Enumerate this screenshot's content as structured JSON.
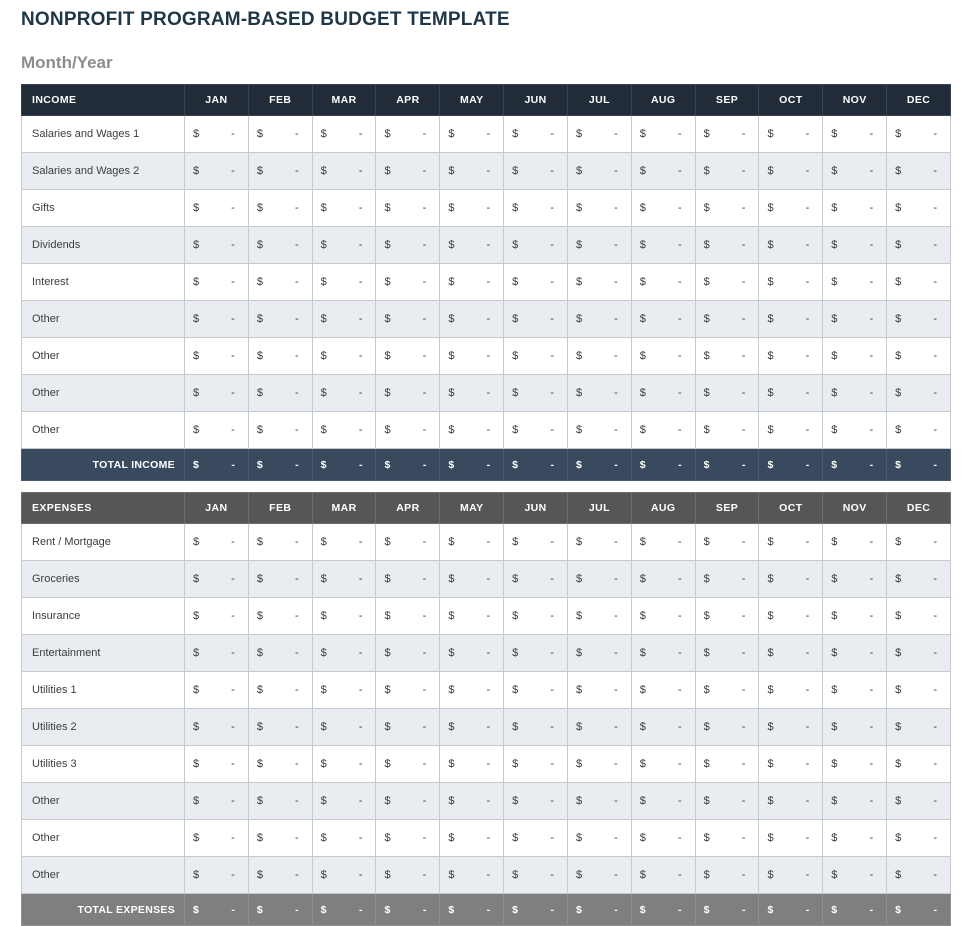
{
  "page": {
    "title": "NONPROFIT PROGRAM-BASED BUDGET TEMPLATE",
    "subtitle": "Month/Year"
  },
  "months": [
    "JAN",
    "FEB",
    "MAR",
    "APR",
    "MAY",
    "JUN",
    "JUL",
    "AUG",
    "SEP",
    "OCT",
    "NOV",
    "DEC"
  ],
  "cell": {
    "currency": "$",
    "placeholder": "-"
  },
  "income": {
    "section_label": "INCOME",
    "rows": [
      "Salaries and Wages 1",
      "Salaries and Wages 2",
      "Gifts",
      "Dividends",
      "Interest",
      "Other",
      "Other",
      "Other",
      "Other"
    ],
    "total_label": "TOTAL INCOME"
  },
  "expenses": {
    "section_label": "EXPENSES",
    "rows": [
      "Rent / Mortgage",
      "Groceries",
      "Insurance",
      "Entertainment",
      "Utilities 1",
      "Utilities 2",
      "Utilities 3",
      "Other",
      "Other",
      "Other"
    ],
    "total_label": "TOTAL EXPENSES"
  },
  "colors": {
    "title": "#1f3747",
    "subtitle": "#8d8d8d",
    "income_header_bg": "#222b38",
    "income_total_bg": "#3a4a5e",
    "expenses_header_bg": "#565656",
    "expenses_total_bg": "#7f7f7f",
    "row_alt_bg": "#e9ecf1",
    "grid_line": "#c6cace"
  }
}
